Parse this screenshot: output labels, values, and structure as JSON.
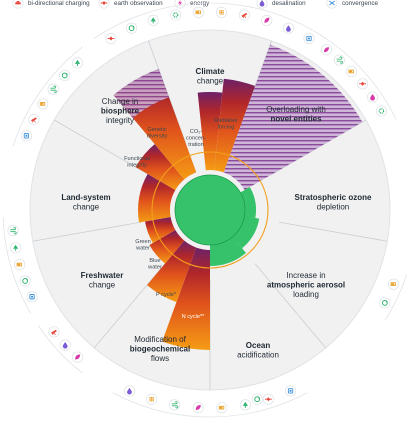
{
  "colors": {
    "background": "#ffffff",
    "wheel_fill": "#f1f1f1",
    "divider": "#c9ced3",
    "safe_zone": "#36c26a",
    "safe_zone_dark": "#1c9a4c",
    "boundary_ring": "#f3a01a",
    "zone_orange": "#f59c14",
    "zone_red": "#c7321f",
    "zone_purple": "#6d2168",
    "unknown": "#8c4a9e"
  },
  "legend": [
    {
      "label": "bi-directional charging",
      "icon": "car-charge-icon",
      "color": "#e5473d"
    },
    {
      "label": "earth observation",
      "icon": "satellite-icon",
      "color": "#e5473d"
    },
    {
      "label": "energy",
      "icon": "energy-icon",
      "color": "#d83aa8"
    },
    {
      "label": "desalination",
      "icon": "water-drop-icon",
      "color": "#7b5cd6"
    },
    {
      "label": "convergence",
      "icon": "convergence-icon",
      "color": "#3a8fd8"
    }
  ],
  "segments": [
    {
      "id": "climate",
      "lines": [
        {
          "t": "Climate",
          "b": true
        },
        {
          "t": "change",
          "b": false
        }
      ]
    },
    {
      "id": "novel-entities",
      "lines": [
        {
          "t": "Overloading with",
          "b": false
        },
        {
          "t": "novel entities",
          "b": true
        }
      ]
    },
    {
      "id": "ozone",
      "lines": [
        {
          "t": "Stratospheric ozone",
          "b": true
        },
        {
          "t": "depletion",
          "b": false
        }
      ]
    },
    {
      "id": "aerosol",
      "lines": [
        {
          "t": "Increase in",
          "b": false
        },
        {
          "t": "atmospheric aerosol",
          "b": true
        },
        {
          "t": "loading",
          "b": false
        }
      ]
    },
    {
      "id": "ocean",
      "lines": [
        {
          "t": "Ocean",
          "b": true
        },
        {
          "t": "acidification",
          "b": false
        }
      ]
    },
    {
      "id": "biogeochemical",
      "lines": [
        {
          "t": "Modification of",
          "b": false
        },
        {
          "t": "biogeochemical",
          "b": true
        },
        {
          "t": "flows",
          "b": false
        }
      ]
    },
    {
      "id": "freshwater",
      "lines": [
        {
          "t": "Freshwater",
          "b": true
        },
        {
          "t": "change",
          "b": false
        }
      ]
    },
    {
      "id": "land-system",
      "lines": [
        {
          "t": "Land-system",
          "b": true
        },
        {
          "t": "change",
          "b": false
        }
      ]
    },
    {
      "id": "biosphere",
      "lines": [
        {
          "t": "Change in",
          "b": false
        },
        {
          "t": "biosphere",
          "b": true
        },
        {
          "t": "integrity",
          "b": false
        }
      ]
    }
  ],
  "control_variables": [
    {
      "id": "co2",
      "lines": [
        "CO₂-",
        "concen-",
        "tration"
      ]
    },
    {
      "id": "radiative",
      "lines": [
        "Radiative",
        "forcing"
      ]
    },
    {
      "id": "genetic",
      "lines": [
        "Genetic",
        "diversity"
      ]
    },
    {
      "id": "functional",
      "lines": [
        "Functional",
        "integrity"
      ]
    },
    {
      "id": "green-water",
      "lines": [
        "Green",
        "water"
      ]
    },
    {
      "id": "blue-water",
      "lines": [
        "Blue",
        "water"
      ]
    },
    {
      "id": "p-cycle",
      "lines": [
        "P cycle*"
      ]
    },
    {
      "id": "n-cycle",
      "lines": [
        "N cycle**"
      ]
    }
  ],
  "icon_groups": [
    {
      "id": "top",
      "icons": [
        {
          "icon": "satellite-icon",
          "color": "#e5473d"
        },
        {
          "icon": "recycle-icon",
          "color": "#2fb36f"
        },
        {
          "icon": "tree-icon",
          "color": "#2fb36f"
        },
        {
          "icon": "gear-icon",
          "color": "#2fb36f"
        },
        {
          "icon": "battery-icon",
          "color": "#e79a1c"
        },
        {
          "icon": "grid-icon",
          "color": "#e79a1c"
        },
        {
          "icon": "telescope-icon",
          "color": "#e5473d"
        },
        {
          "icon": "leaf-icon",
          "color": "#d83aa8"
        },
        {
          "icon": "drop-icon",
          "color": "#7b5cd6"
        },
        {
          "icon": "chip-icon",
          "color": "#3a8fd8"
        }
      ]
    },
    {
      "id": "upper-left",
      "icons": [
        {
          "icon": "chip-icon",
          "color": "#3a8fd8"
        },
        {
          "icon": "telescope-icon",
          "color": "#e5473d"
        },
        {
          "icon": "battery-icon",
          "color": "#e79a1c"
        },
        {
          "icon": "wind-icon",
          "color": "#2fb36f"
        },
        {
          "icon": "recycle-icon",
          "color": "#2fb36f"
        },
        {
          "icon": "tree-icon",
          "color": "#2fb36f"
        }
      ]
    },
    {
      "id": "upper-right",
      "icons": [
        {
          "icon": "leaf-icon",
          "color": "#d83aa8"
        },
        {
          "icon": "wind-icon",
          "color": "#2fb36f"
        },
        {
          "icon": "battery-icon",
          "color": "#e79a1c"
        },
        {
          "icon": "satellite-icon",
          "color": "#e5473d"
        },
        {
          "icon": "drop-icon",
          "color": "#d83aa8"
        },
        {
          "icon": "gear-icon",
          "color": "#2fb36f"
        }
      ]
    },
    {
      "id": "left",
      "icons": [
        {
          "icon": "chip-icon",
          "color": "#3a8fd8"
        },
        {
          "icon": "recycle-icon",
          "color": "#2fb36f"
        },
        {
          "icon": "battery-icon",
          "color": "#e79a1c"
        },
        {
          "icon": "tree-icon",
          "color": "#2fb36f"
        },
        {
          "icon": "wind-icon",
          "color": "#2fb36f"
        }
      ]
    },
    {
      "id": "lower-left",
      "icons": [
        {
          "icon": "leaf-icon",
          "color": "#d83aa8"
        },
        {
          "icon": "drop-icon",
          "color": "#7b5cd6"
        },
        {
          "icon": "telescope-icon",
          "color": "#e5473d"
        }
      ]
    },
    {
      "id": "right",
      "icons": [
        {
          "icon": "battery-icon",
          "color": "#e79a1c"
        },
        {
          "icon": "recycle-icon",
          "color": "#2fb36f"
        }
      ]
    },
    {
      "id": "bottom",
      "icons": [
        {
          "icon": "chip-icon",
          "color": "#3a8fd8"
        },
        {
          "icon": "satellite-icon",
          "color": "#e5473d"
        },
        {
          "icon": "tree-icon",
          "color": "#2fb36f"
        },
        {
          "icon": "battery-icon",
          "color": "#e79a1c"
        },
        {
          "icon": "leaf-icon",
          "color": "#d83aa8"
        },
        {
          "icon": "wind-icon",
          "color": "#2fb36f"
        },
        {
          "icon": "grid-icon",
          "color": "#e79a1c"
        },
        {
          "icon": "drop-icon",
          "color": "#7b5cd6"
        }
      ]
    },
    {
      "id": "bottom-right",
      "icons": [
        {
          "icon": "recycle-icon",
          "color": "#2fb36f"
        }
      ]
    }
  ]
}
